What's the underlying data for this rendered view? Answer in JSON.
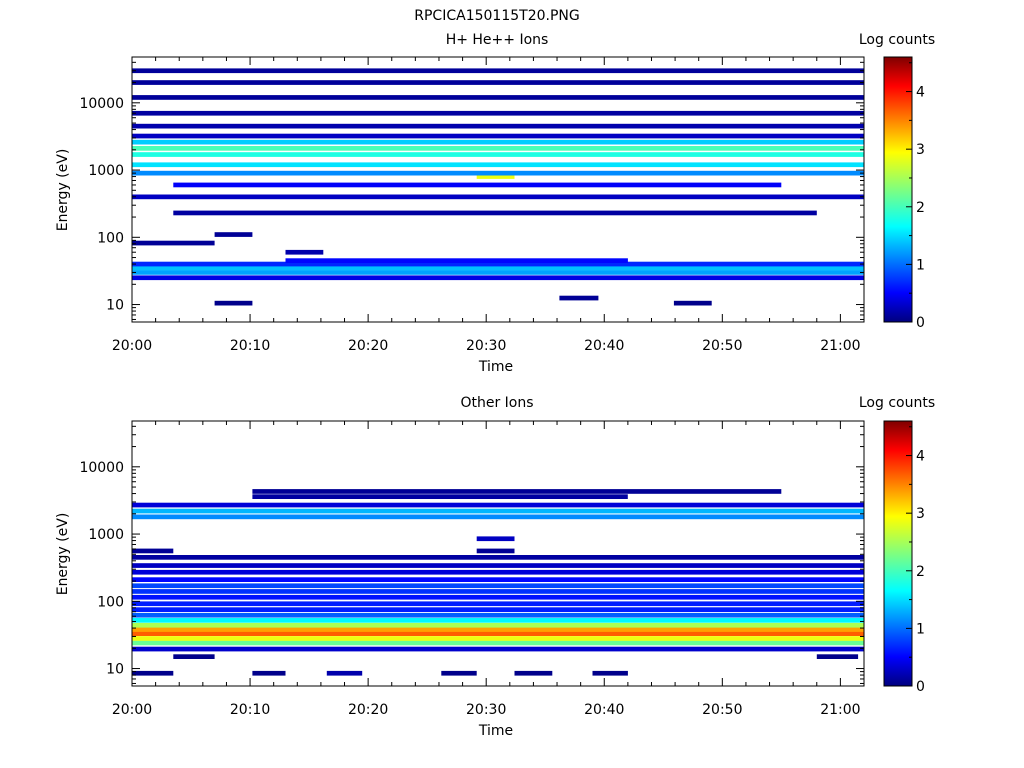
{
  "page_title": "RPCICA150115T20.PNG",
  "chart_data": [
    {
      "type": "heatmap",
      "title": "H+ He++ Ions",
      "xlabel": "Time",
      "ylabel": "Energy (eV)",
      "x_ticks": [
        "20:00",
        "20:10",
        "20:20",
        "20:30",
        "20:40",
        "20:50",
        "21:00"
      ],
      "x_range_minutes": [
        0,
        62
      ],
      "y_scale": "log",
      "y_ticks": [
        {
          "v": 10,
          "label": "10"
        },
        {
          "v": 100,
          "label": "100"
        },
        {
          "v": 1000,
          "label": "1000"
        },
        {
          "v": 10000,
          "label": "10000"
        }
      ],
      "y_range": [
        5.5,
        48000
      ],
      "colorbar": {
        "label": "Log counts",
        "ticks": [
          "0",
          "1",
          "2",
          "3",
          "4"
        ],
        "range": [
          0,
          4.6
        ]
      },
      "bins": [
        {
          "e": 10.5,
          "t0": 7.0,
          "t1": 10.2,
          "v": 0.05
        },
        {
          "e": 10.5,
          "t0": 45.9,
          "t1": 49.1,
          "v": 0.05
        },
        {
          "e": 12.5,
          "t0": 36.2,
          "t1": 39.5,
          "v": 0.1
        },
        {
          "e": 25,
          "t0": 0,
          "t1": 62,
          "v": 0.45
        },
        {
          "e": 30,
          "t0": 0,
          "t1": 62,
          "v": 1.3
        },
        {
          "e": 35,
          "t0": 0,
          "t1": 62,
          "v": 1.45
        },
        {
          "e": 40,
          "t0": 0,
          "t1": 62,
          "v": 0.75
        },
        {
          "e": 45,
          "t0": 13.0,
          "t1": 42.0,
          "v": 0.6
        },
        {
          "e": 60,
          "t0": 13.0,
          "t1": 16.2,
          "v": 0.2
        },
        {
          "e": 82,
          "t0": 0,
          "t1": 7.0,
          "v": 0.1
        },
        {
          "e": 110,
          "t0": 7.0,
          "t1": 10.2,
          "v": 0.1
        },
        {
          "e": 230,
          "t0": 3.5,
          "t1": 58.0,
          "v": 0.15
        },
        {
          "e": 400,
          "t0": 0,
          "t1": 62,
          "v": 0.3
        },
        {
          "e": 600,
          "t0": 3.5,
          "t1": 55.0,
          "v": 0.55
        },
        {
          "e": 800,
          "t0": 29.2,
          "t1": 32.4,
          "v": 2.8
        },
        {
          "e": 900,
          "t0": 0,
          "t1": 62,
          "v": 1.2
        },
        {
          "e": 1200,
          "t0": 0,
          "t1": 62,
          "v": 1.6
        },
        {
          "e": 1700,
          "t0": 0,
          "t1": 62,
          "v": 1.85
        },
        {
          "e": 2100,
          "t0": 0,
          "t1": 62,
          "v": 2.05
        },
        {
          "e": 2600,
          "t0": 0,
          "t1": 62,
          "v": 1.5
        },
        {
          "e": 3200,
          "t0": 0,
          "t1": 62,
          "v": 0.3
        },
        {
          "e": 4500,
          "t0": 0,
          "t1": 62,
          "v": 0.2
        },
        {
          "e": 7000,
          "t0": 0,
          "t1": 62,
          "v": 0.15
        },
        {
          "e": 12000,
          "t0": 0,
          "t1": 62,
          "v": 0.12
        },
        {
          "e": 20000,
          "t0": 0,
          "t1": 62,
          "v": 0.12
        },
        {
          "e": 30000,
          "t0": 0,
          "t1": 62,
          "v": 0.12
        }
      ]
    },
    {
      "type": "heatmap",
      "title": "Other Ions",
      "xlabel": "Time",
      "ylabel": "Energy (eV)",
      "x_ticks": [
        "20:00",
        "20:10",
        "20:20",
        "20:30",
        "20:40",
        "20:50",
        "21:00"
      ],
      "x_range_minutes": [
        0,
        62
      ],
      "y_scale": "log",
      "y_ticks": [
        {
          "v": 10,
          "label": "10"
        },
        {
          "v": 100,
          "label": "100"
        },
        {
          "v": 1000,
          "label": "1000"
        },
        {
          "v": 10000,
          "label": "10000"
        }
      ],
      "y_range": [
        5.5,
        48000
      ],
      "colorbar": {
        "label": "Log counts",
        "ticks": [
          "0",
          "1",
          "2",
          "3",
          "4"
        ],
        "range": [
          0,
          4.6
        ]
      },
      "bins": [
        {
          "e": 8.5,
          "t0": 0,
          "t1": 3.5,
          "v": 0.05
        },
        {
          "e": 8.5,
          "t0": 10.2,
          "t1": 13.0,
          "v": 0.05
        },
        {
          "e": 8.5,
          "t0": 16.5,
          "t1": 19.5,
          "v": 0.2
        },
        {
          "e": 8.5,
          "t0": 26.2,
          "t1": 29.2,
          "v": 0.05
        },
        {
          "e": 8.5,
          "t0": 32.4,
          "t1": 35.6,
          "v": 0.05
        },
        {
          "e": 8.5,
          "t0": 39.0,
          "t1": 42.0,
          "v": 0.05
        },
        {
          "e": 15,
          "t0": 3.5,
          "t1": 7.0,
          "v": 0.05
        },
        {
          "e": 15,
          "t0": 58.0,
          "t1": 61.5,
          "v": 0.05
        },
        {
          "e": 19.5,
          "t0": 0,
          "t1": 62,
          "v": 0.35
        },
        {
          "e": 24,
          "t0": 0,
          "t1": 62,
          "v": 2.2
        },
        {
          "e": 28,
          "t0": 0,
          "t1": 62,
          "v": 2.8
        },
        {
          "e": 33,
          "t0": 0,
          "t1": 62,
          "v": 3.6
        },
        {
          "e": 38,
          "t0": 0,
          "t1": 62,
          "v": 3.3
        },
        {
          "e": 44,
          "t0": 0,
          "t1": 62,
          "v": 2.5
        },
        {
          "e": 52,
          "t0": 0,
          "t1": 62,
          "v": 1.7
        },
        {
          "e": 62,
          "t0": 0,
          "t1": 62,
          "v": 1.0
        },
        {
          "e": 75,
          "t0": 0,
          "t1": 62,
          "v": 0.7
        },
        {
          "e": 92,
          "t0": 0,
          "t1": 62,
          "v": 0.7
        },
        {
          "e": 115,
          "t0": 0,
          "t1": 62,
          "v": 0.65
        },
        {
          "e": 140,
          "t0": 0,
          "t1": 62,
          "v": 0.8
        },
        {
          "e": 170,
          "t0": 0,
          "t1": 62,
          "v": 0.9
        },
        {
          "e": 210,
          "t0": 0,
          "t1": 62,
          "v": 0.6
        },
        {
          "e": 270,
          "t0": 0,
          "t1": 62,
          "v": 0.4
        },
        {
          "e": 340,
          "t0": 0,
          "t1": 62,
          "v": 0.3
        },
        {
          "e": 450,
          "t0": 0,
          "t1": 62,
          "v": 0.15
        },
        {
          "e": 560,
          "t0": 0,
          "t1": 3.5,
          "v": 0.1
        },
        {
          "e": 560,
          "t0": 29.2,
          "t1": 32.4,
          "v": 0.1
        },
        {
          "e": 850,
          "t0": 29.2,
          "t1": 32.4,
          "v": 0.3
        },
        {
          "e": 1800,
          "t0": 0,
          "t1": 62,
          "v": 1.2
        },
        {
          "e": 2200,
          "t0": 0,
          "t1": 62,
          "v": 1.4
        },
        {
          "e": 2700,
          "t0": 0,
          "t1": 62,
          "v": 0.4
        },
        {
          "e": 3600,
          "t0": 10.2,
          "t1": 42.0,
          "v": 0.15
        },
        {
          "e": 4300,
          "t0": 10.2,
          "t1": 55.0,
          "v": 0.1
        }
      ]
    }
  ]
}
